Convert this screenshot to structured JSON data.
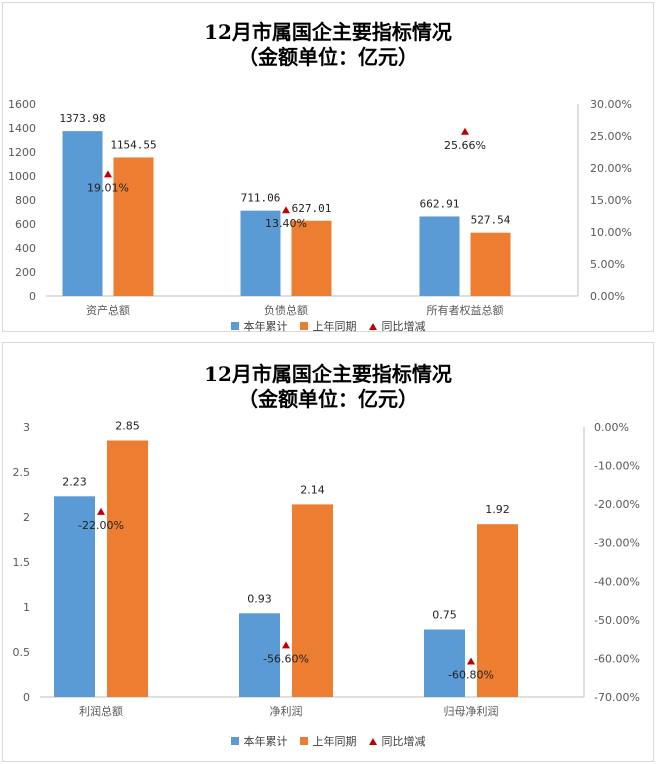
{
  "colors": {
    "current": "#5b9bd5",
    "prior": "#ed7d31",
    "change": "#c00000"
  },
  "chart_data": [
    {
      "type": "bar",
      "title": "12月市属国企主要指标情况",
      "subtitle": "（金额单位：亿元）",
      "categories": [
        "资产总额",
        "负债总额",
        "所有者权益总额"
      ],
      "series": [
        {
          "name": "本年累计",
          "axis": "left",
          "values": [
            1373.98,
            711.06,
            662.91
          ],
          "labels": [
            "1373.98",
            "711.06",
            "662.91"
          ]
        },
        {
          "name": "上年同期",
          "axis": "left",
          "values": [
            1154.55,
            627.01,
            527.54
          ],
          "labels": [
            "1154.55",
            "627.01",
            "527.54"
          ]
        },
        {
          "name": "同比增减",
          "axis": "right",
          "marker": "triangle",
          "values": [
            0.1901,
            0.134,
            0.2566
          ],
          "labels": [
            "19.01%",
            "13.40%",
            "25.66%"
          ]
        }
      ],
      "ylim": [
        0,
        1600
      ],
      "yticks": [
        "0",
        "200",
        "400",
        "600",
        "800",
        "1000",
        "1200",
        "1400",
        "1600"
      ],
      "y2lim": [
        0,
        0.3
      ],
      "y2ticks": [
        "0.00%",
        "5.00%",
        "10.00%",
        "15.00%",
        "20.00%",
        "25.00%",
        "30.00%"
      ],
      "legend": "bottom"
    },
    {
      "type": "bar",
      "title": "12月市属国企主要指标情况",
      "subtitle": "（金额单位：亿元）",
      "categories": [
        "利润总额",
        "净利润",
        "归母净利润"
      ],
      "series": [
        {
          "name": "本年累计",
          "axis": "left",
          "values": [
            2.23,
            0.93,
            0.75
          ],
          "labels": [
            "2.23",
            "0.93",
            "0.75"
          ]
        },
        {
          "name": "上年同期",
          "axis": "left",
          "values": [
            2.85,
            2.14,
            1.92
          ],
          "labels": [
            "2.85",
            "2.14",
            "1.92"
          ]
        },
        {
          "name": "同比增减",
          "axis": "right",
          "marker": "triangle",
          "values": [
            -0.22,
            -0.566,
            -0.608
          ],
          "labels": [
            "-22.00%",
            "-56.60%",
            "-60.80%"
          ]
        }
      ],
      "ylim": [
        0,
        3
      ],
      "yticks": [
        "0",
        "0.5",
        "1",
        "1.5",
        "2",
        "2.5",
        "3"
      ],
      "y2lim": [
        -0.7,
        0
      ],
      "y2ticks": [
        "-70.00%",
        "-60.00%",
        "-50.00%",
        "-40.00%",
        "-30.00%",
        "-20.00%",
        "-10.00%",
        "0.00%"
      ],
      "legend": "bottom"
    }
  ]
}
